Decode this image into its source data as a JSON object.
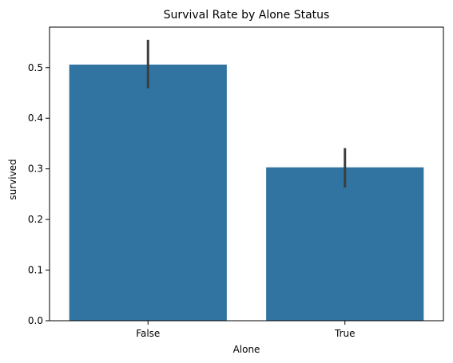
{
  "chart_data": {
    "type": "bar",
    "title": "Survival Rate by Alone Status",
    "xlabel": "Alone",
    "ylabel": "survived",
    "categories": [
      "False",
      "True"
    ],
    "values": [
      0.506,
      0.303
    ],
    "error_low": [
      0.459,
      0.263
    ],
    "error_high": [
      0.555,
      0.341
    ],
    "ylim": [
      0,
      0.58
    ],
    "yticks": [
      0.0,
      0.1,
      0.2,
      0.3,
      0.4,
      0.5
    ],
    "ytick_labels": [
      "0.0",
      "0.1",
      "0.2",
      "0.3",
      "0.4",
      "0.5"
    ],
    "grid": false,
    "legend": "none",
    "bar_color": "#3274a1",
    "errorbar_color": "#3d3d3d"
  }
}
